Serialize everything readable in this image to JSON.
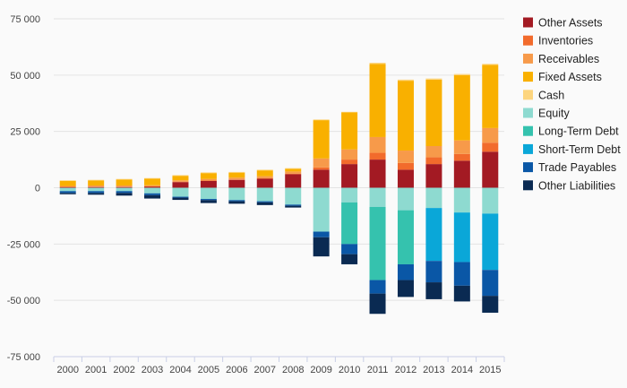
{
  "chart_data": {
    "type": "bar",
    "stacked": true,
    "categories": [
      "2000",
      "2001",
      "2002",
      "2003",
      "2004",
      "2005",
      "2006",
      "2007",
      "2008",
      "2009",
      "2010",
      "2011",
      "2012",
      "2013",
      "2014",
      "2015"
    ],
    "ylim": [
      -75000,
      75000
    ],
    "y_ticks": [
      75000,
      50000,
      25000,
      0,
      -25000,
      -50000,
      -75000
    ],
    "y_tick_labels": [
      "75 000",
      "50 000",
      "25 000",
      "0",
      "-25 000",
      "-50 000",
      "-75 000"
    ],
    "grid": true,
    "legend_position": "right",
    "series": [
      {
        "name": "Other Assets",
        "color": "#a31a23",
        "values": [
          200,
          300,
          300,
          400,
          2500,
          3000,
          3500,
          4000,
          6000,
          8000,
          10500,
          12500,
          8000,
          10500,
          12000,
          16000
        ]
      },
      {
        "name": "Inventories",
        "color": "#f26b2c",
        "values": [
          200,
          200,
          200,
          200,
          200,
          200,
          200,
          200,
          200,
          1000,
          2000,
          3000,
          3000,
          3000,
          3000,
          4000
        ]
      },
      {
        "name": "Receivables",
        "color": "#f79a4a",
        "values": [
          400,
          500,
          500,
          500,
          600,
          700,
          800,
          900,
          1000,
          4000,
          4500,
          7000,
          5500,
          5000,
          6000,
          6500
        ]
      },
      {
        "name": "Fixed Assets",
        "color": "#f9b000",
        "values": [
          2200,
          2200,
          2600,
          2900,
          2000,
          2600,
          2200,
          2600,
          1200,
          17000,
          16500,
          32500,
          31000,
          29500,
          29000,
          28000
        ]
      },
      {
        "name": "Cash",
        "color": "#fdd57e",
        "values": [
          300,
          300,
          300,
          300,
          300,
          300,
          300,
          300,
          300,
          300,
          200,
          500,
          500,
          500,
          500,
          500
        ]
      },
      {
        "name": "Equity",
        "color": "#8edad0",
        "values": [
          -1500,
          -1500,
          -1500,
          -2500,
          -4000,
          -5000,
          -5500,
          -6000,
          -7500,
          -19500,
          -6500,
          -8500,
          -10000,
          -9000,
          -11000,
          -11500
        ]
      },
      {
        "name": "Long-Term Debt",
        "color": "#35c2ae",
        "values": [
          0,
          0,
          0,
          0,
          0,
          0,
          0,
          0,
          0,
          0,
          -18500,
          -32500,
          -24000,
          0,
          0,
          0
        ]
      },
      {
        "name": "Short-Term Debt",
        "color": "#0aa7d8",
        "values": [
          0,
          0,
          0,
          0,
          0,
          0,
          0,
          0,
          0,
          0,
          0,
          0,
          0,
          -23500,
          -22000,
          -25000
        ]
      },
      {
        "name": "Trade Payables",
        "color": "#0a57a6",
        "values": [
          -800,
          -800,
          -800,
          -800,
          -400,
          -500,
          -500,
          -500,
          -500,
          -2500,
          -4500,
          -6000,
          -7000,
          -9500,
          -10500,
          -11500
        ]
      },
      {
        "name": "Other Liabilities",
        "color": "#0a2a52",
        "values": [
          -600,
          -800,
          -1200,
          -1500,
          -1000,
          -1300,
          -1100,
          -1200,
          -800,
          -8500,
          -4500,
          -9000,
          -7500,
          -7500,
          -7000,
          -7500
        ]
      }
    ]
  }
}
